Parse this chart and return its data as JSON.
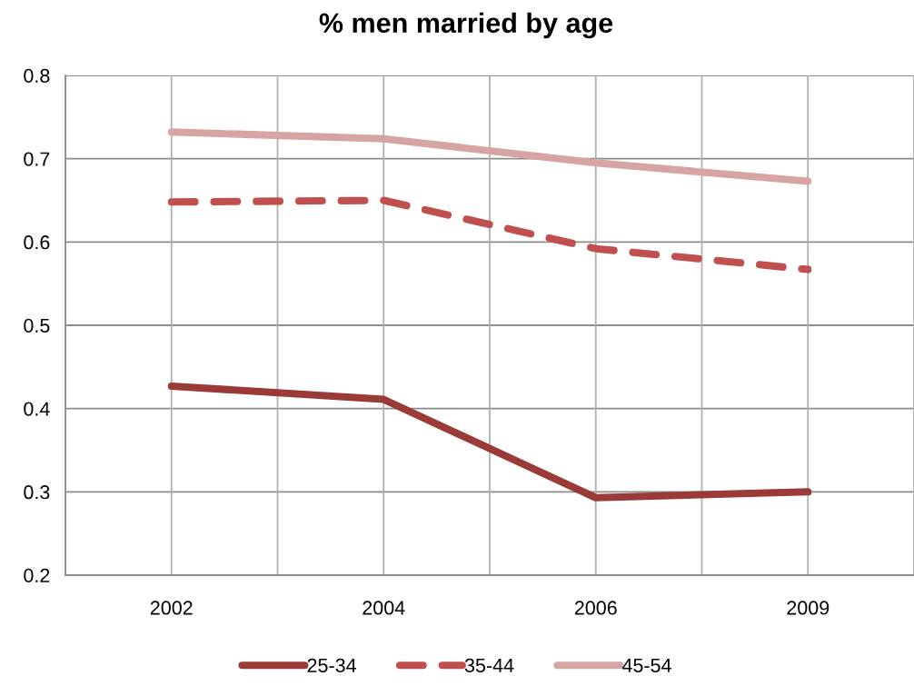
{
  "chart_data": {
    "type": "line",
    "title": "% men married by age",
    "categories": [
      "2002",
      "2004",
      "2006",
      "2009"
    ],
    "series": [
      {
        "name": "25-34",
        "color": "#9b3b39",
        "line_style": "solid",
        "values": [
          0.427,
          0.411,
          0.293,
          0.3
        ]
      },
      {
        "name": "35-44",
        "color": "#c0504d",
        "line_style": "dashed",
        "values": [
          0.648,
          0.65,
          0.592,
          0.567
        ]
      },
      {
        "name": "45-54",
        "color": "#d6a4a3",
        "line_style": "solid",
        "values": [
          0.732,
          0.724,
          0.695,
          0.673
        ]
      }
    ],
    "ylim": [
      0.2,
      0.8
    ],
    "yticks": [
      0.2,
      0.3,
      0.4,
      0.5,
      0.6,
      0.7,
      0.8
    ],
    "grid": true,
    "legend": "bottom",
    "marker": "none"
  }
}
